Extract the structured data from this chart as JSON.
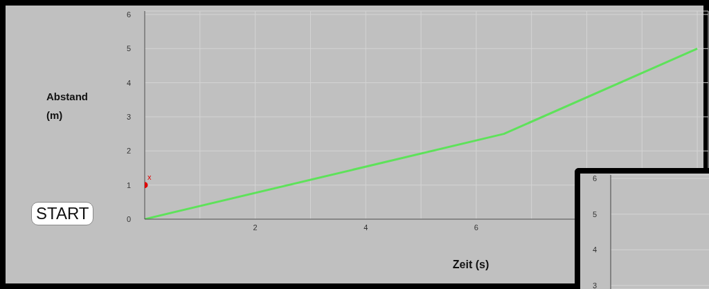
{
  "chart_data": [
    {
      "type": "line",
      "xlabel": "Zeit (s)",
      "ylabel": "Abstand (m)",
      "series": [
        {
          "type": "line",
          "color": "#5ee25a",
          "x": [
            0,
            6.5,
            10
          ],
          "values": [
            0,
            2.5,
            5
          ],
          "marker": "none",
          "line_style": "solid"
        },
        {
          "type": "scatter",
          "color": "#e00000",
          "x": [
            0
          ],
          "values": [
            1
          ],
          "marker": "circle"
        }
      ],
      "xlim": [
        0,
        10.2
      ],
      "xticks": [
        {
          "value": 0,
          "label": null
        },
        {
          "value": 1,
          "label": null
        },
        2,
        {
          "value": 3,
          "label": null
        },
        4,
        {
          "value": 5,
          "label": null
        },
        6,
        {
          "value": 7,
          "label": null
        },
        {
          "value": 8,
          "label": null
        },
        {
          "value": 9,
          "label": null
        },
        {
          "value": 10,
          "label": null
        }
      ],
      "ylim": [
        0,
        6.1
      ],
      "yticks": [
        0,
        1,
        2,
        3,
        4,
        5,
        6
      ],
      "grid": true,
      "annotations": [
        "START",
        {
          "text": "x",
          "x": 0,
          "y": 1
        }
      ]
    },
    {
      "type": "line",
      "categories": [
        null
      ],
      "values": [
        null
      ],
      "ylim": [
        2.9,
        6.1
      ],
      "yticks": [
        3,
        4,
        5,
        6
      ],
      "grid": "y",
      "tick_labels": "y"
    }
  ]
}
